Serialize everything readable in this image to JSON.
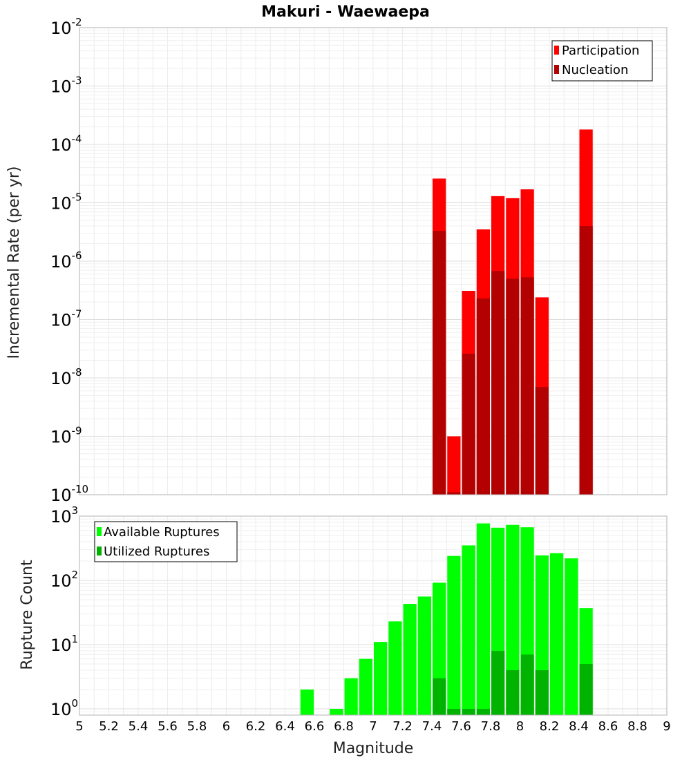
{
  "chart_data": [
    {
      "type": "bar",
      "title": "Makuri - Waewaepa",
      "ylabel": "Incremental Rate (per yr)",
      "xlabel": "",
      "yscale": "log",
      "ylim": [
        1e-10,
        0.01
      ],
      "xlim": [
        5,
        9
      ],
      "grid": true,
      "legend_position": "top-right",
      "ytick_exponents": [
        -10,
        -9,
        -8,
        -7,
        -6,
        -5,
        -4,
        -3,
        -2
      ],
      "bar_width": 0.1,
      "series": [
        {
          "name": "Participation",
          "color": "#ff0000",
          "x": [
            7.45,
            7.55,
            7.65,
            7.75,
            7.85,
            7.95,
            8.05,
            8.15,
            8.45
          ],
          "values": [
            2.6e-05,
            1e-09,
            3.1e-07,
            3.5e-06,
            1.3e-05,
            1.2e-05,
            1.7e-05,
            2.4e-07,
            0.00018
          ]
        },
        {
          "name": "Nucleation",
          "color": "#b30000",
          "x": [
            7.45,
            7.55,
            7.65,
            7.75,
            7.85,
            7.95,
            8.05,
            8.15,
            8.45
          ],
          "values": [
            3.3e-06,
            1.1e-10,
            2.6e-08,
            2.3e-07,
            6.8e-07,
            5e-07,
            5.3e-07,
            7e-09,
            4e-06
          ]
        }
      ]
    },
    {
      "type": "bar",
      "title": "",
      "ylabel": "Rupture Count",
      "xlabel": "Magnitude",
      "yscale": "log",
      "ylim": [
        0.8,
        1000
      ],
      "xlim": [
        5,
        9
      ],
      "grid": true,
      "legend_position": "top-left",
      "ytick_exponents": [
        0,
        1,
        2,
        3
      ],
      "xticks": [
        "5",
        "5.2",
        "5.4",
        "5.6",
        "5.8",
        "6",
        "6.2",
        "6.4",
        "6.6",
        "6.8",
        "7",
        "7.2",
        "7.4",
        "7.6",
        "7.8",
        "8",
        "8.2",
        "8.4",
        "8.6",
        "8.8",
        "9"
      ],
      "bar_width": 0.1,
      "series": [
        {
          "name": "Available Ruptures",
          "color": "#00ff00",
          "x": [
            6.55,
            6.75,
            6.85,
            6.95,
            7.05,
            7.15,
            7.25,
            7.35,
            7.45,
            7.55,
            7.65,
            7.75,
            7.85,
            7.95,
            8.05,
            8.15,
            8.25,
            8.35,
            8.45
          ],
          "values": [
            2,
            1,
            3,
            6,
            11,
            23,
            43,
            56,
            92,
            240,
            350,
            770,
            660,
            730,
            670,
            245,
            265,
            220,
            37
          ]
        },
        {
          "name": "Utilized Ruptures",
          "color": "#00b300",
          "x": [
            7.45,
            7.55,
            7.65,
            7.75,
            7.85,
            7.95,
            8.05,
            8.15,
            8.45
          ],
          "values": [
            3,
            1,
            1,
            1,
            8,
            4,
            7,
            4,
            5
          ]
        }
      ]
    }
  ]
}
